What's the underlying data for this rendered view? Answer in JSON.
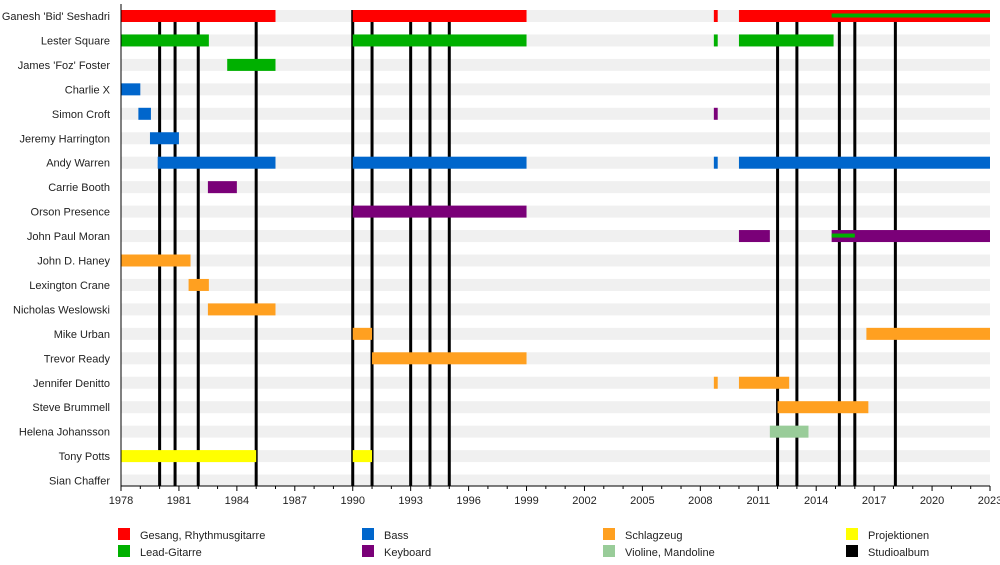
{
  "chart_data": {
    "type": "timeline",
    "xlim": [
      1978,
      2023
    ],
    "x_ticks": [
      "1978",
      "1981",
      "1984",
      "1987",
      "1990",
      "1993",
      "1996",
      "1999",
      "2002",
      "2005",
      "2008",
      "2011",
      "2014",
      "2017",
      "2020",
      "2023"
    ],
    "colors": {
      "vocals": "#ff0000",
      "lead": "#00b000",
      "bass": "#0066cc",
      "keys": "#7a0078",
      "drums": "#ffa020",
      "violin": "#99cc99",
      "proj": "#ffff00",
      "album": "#000000"
    },
    "legend": [
      {
        "role": "vocals",
        "label": "Gesang, Rhythmusgitarre"
      },
      {
        "role": "lead",
        "label": "Lead-Gitarre"
      },
      {
        "role": "bass",
        "label": "Bass"
      },
      {
        "role": "keys",
        "label": "Keyboard"
      },
      {
        "role": "drums",
        "label": "Schlagzeug"
      },
      {
        "role": "violin",
        "label": "Violine, Mandoline"
      },
      {
        "role": "proj",
        "label": "Projektionen"
      },
      {
        "role": "album",
        "label": "Studioalbum"
      }
    ],
    "albums": [
      1980.0,
      1980.8,
      1982.0,
      1985.0,
      1990.0,
      1991.0,
      1993.0,
      1994.0,
      1995.0,
      2012.0,
      2013.0,
      2015.2,
      2016.0,
      2018.1
    ],
    "members": [
      {
        "name": "Ganesh 'Bid' Seshadri",
        "bars": [
          {
            "role": "vocals",
            "from": 1978,
            "to": 1986
          },
          {
            "role": "vocals",
            "from": 1990,
            "to": 1999
          },
          {
            "role": "vocals",
            "from": 2008.7,
            "to": 2008.9
          },
          {
            "role": "vocals",
            "from": 2010,
            "to": 2023
          },
          {
            "role": "lead",
            "from": 2014.8,
            "to": 2023,
            "secondary": true
          }
        ]
      },
      {
        "name": "Lester Square",
        "bars": [
          {
            "role": "lead",
            "from": 1978,
            "to": 1982.55
          },
          {
            "role": "lead",
            "from": 1990,
            "to": 1999
          },
          {
            "role": "lead",
            "from": 2008.7,
            "to": 2008.9
          },
          {
            "role": "lead",
            "from": 2010,
            "to": 2014.9
          }
        ]
      },
      {
        "name": "James 'Foz' Foster",
        "bars": [
          {
            "role": "lead",
            "from": 1983.5,
            "to": 1986
          }
        ]
      },
      {
        "name": "Charlie X",
        "bars": [
          {
            "role": "bass",
            "from": 1978,
            "to": 1979
          }
        ]
      },
      {
        "name": "Simon Croft",
        "bars": [
          {
            "role": "bass",
            "from": 1978.9,
            "to": 1979.55
          },
          {
            "role": "keys",
            "from": 2008.7,
            "to": 2008.9
          }
        ]
      },
      {
        "name": "Jeremy Harrington",
        "bars": [
          {
            "role": "bass",
            "from": 1979.5,
            "to": 1981
          }
        ]
      },
      {
        "name": "Andy Warren",
        "bars": [
          {
            "role": "bass",
            "from": 1979.9,
            "to": 1986
          },
          {
            "role": "bass",
            "from": 1990,
            "to": 1999
          },
          {
            "role": "bass",
            "from": 2008.7,
            "to": 2008.9
          },
          {
            "role": "bass",
            "from": 2010,
            "to": 2023
          }
        ]
      },
      {
        "name": "Carrie Booth",
        "bars": [
          {
            "role": "keys",
            "from": 1982.5,
            "to": 1984
          }
        ]
      },
      {
        "name": "Orson Presence",
        "bars": [
          {
            "role": "keys",
            "from": 1990,
            "to": 1999
          }
        ]
      },
      {
        "name": "John Paul Moran",
        "bars": [
          {
            "role": "keys",
            "from": 2010,
            "to": 2011.6
          },
          {
            "role": "keys",
            "from": 2014.8,
            "to": 2023
          },
          {
            "role": "lead",
            "from": 2014.8,
            "to": 2016,
            "secondary": true
          }
        ]
      },
      {
        "name": "John D. Haney",
        "bars": [
          {
            "role": "drums",
            "from": 1978,
            "to": 1981.6
          }
        ]
      },
      {
        "name": "Lexington Crane",
        "bars": [
          {
            "role": "drums",
            "from": 1981.5,
            "to": 1982.55
          }
        ]
      },
      {
        "name": "Nicholas Weslowski",
        "bars": [
          {
            "role": "drums",
            "from": 1982.5,
            "to": 1986
          }
        ]
      },
      {
        "name": "Mike Urban",
        "bars": [
          {
            "role": "drums",
            "from": 1990,
            "to": 1991
          },
          {
            "role": "drums",
            "from": 2016.6,
            "to": 2023
          }
        ]
      },
      {
        "name": "Trevor Ready",
        "bars": [
          {
            "role": "drums",
            "from": 1991,
            "to": 1999
          }
        ]
      },
      {
        "name": "Jennifer Denitto",
        "bars": [
          {
            "role": "drums",
            "from": 2008.7,
            "to": 2008.9
          },
          {
            "role": "drums",
            "from": 2010,
            "to": 2012.6
          }
        ]
      },
      {
        "name": "Steve Brummell",
        "bars": [
          {
            "role": "drums",
            "from": 2012,
            "to": 2016.7
          }
        ]
      },
      {
        "name": "Helena Johansson",
        "bars": [
          {
            "role": "violin",
            "from": 2011.6,
            "to": 2013.6
          }
        ]
      },
      {
        "name": "Tony Potts",
        "bars": [
          {
            "role": "proj",
            "from": 1978,
            "to": 1985
          },
          {
            "role": "proj",
            "from": 1990,
            "to": 1991
          }
        ]
      },
      {
        "name": "Sian Chaffer",
        "bars": []
      }
    ]
  }
}
